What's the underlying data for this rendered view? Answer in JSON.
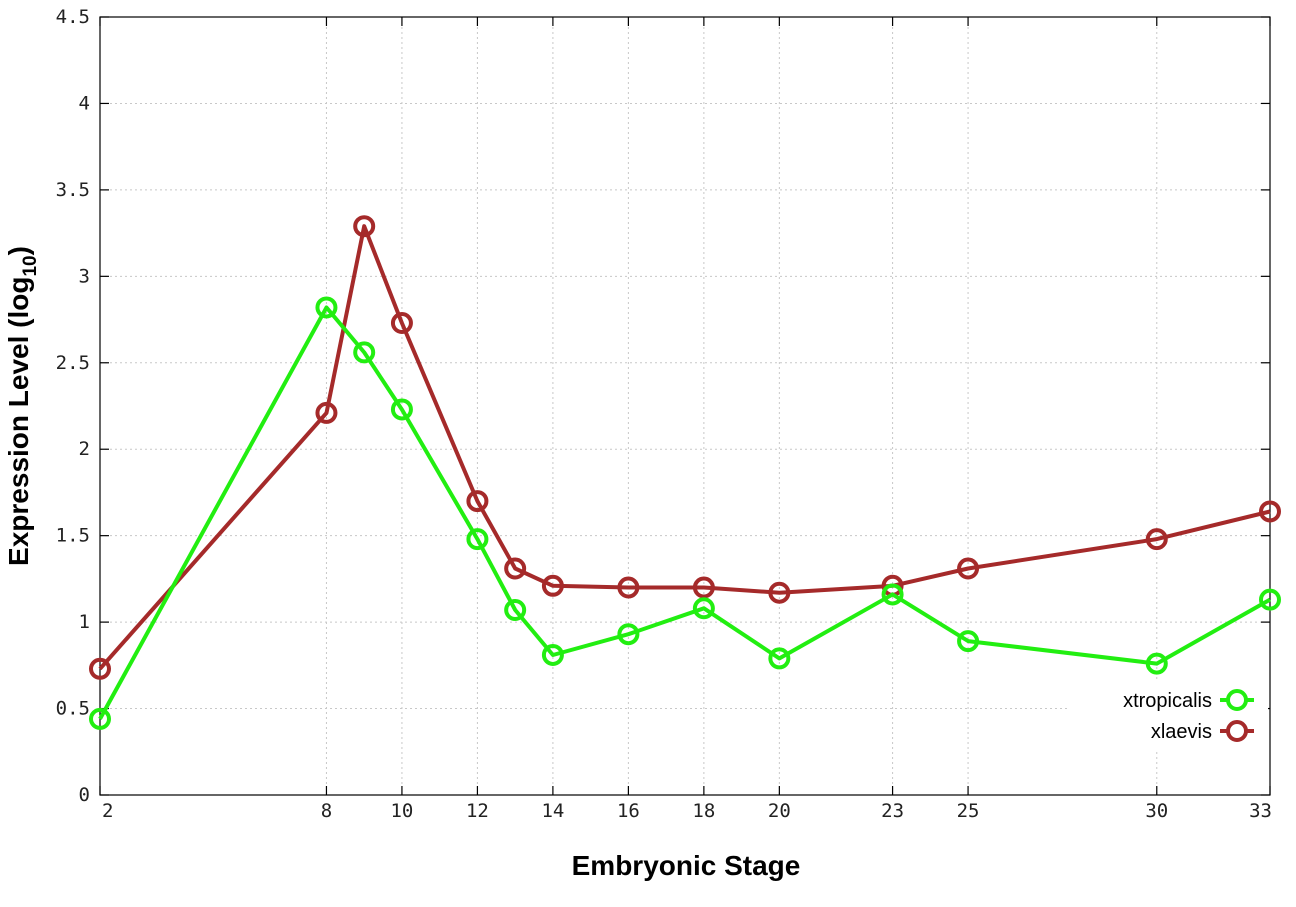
{
  "chart_data": {
    "type": "line",
    "xlabel": "Embryonic Stage",
    "ylabel": "Expression Level (log",
    "ylabel_subscript": "10",
    "ylabel_close": ")",
    "xlim": [
      2,
      33
    ],
    "ylim": [
      0,
      4.5
    ],
    "x_ticks": [
      2,
      8,
      10,
      12,
      14,
      16,
      18,
      20,
      23,
      25,
      30,
      33
    ],
    "y_ticks": [
      0,
      0.5,
      1,
      1.5,
      2,
      2.5,
      3,
      3.5,
      4,
      4.5
    ],
    "y_tick_labels": [
      "0",
      "0.5",
      "1",
      "1.5",
      "2",
      "2.5",
      "3",
      "3.5",
      "4",
      "4.5"
    ],
    "grid": true,
    "legend_position": "bottom-right",
    "x": [
      2,
      8,
      9,
      10,
      12,
      13,
      14,
      16,
      18,
      20,
      23,
      25,
      30,
      33
    ],
    "series": [
      {
        "name": "xtropicalis",
        "color": "#22ee11",
        "values": [
          0.44,
          2.82,
          2.56,
          2.23,
          1.48,
          1.07,
          0.81,
          0.93,
          1.08,
          0.79,
          1.16,
          0.89,
          0.76,
          1.13
        ]
      },
      {
        "name": "xlaevis",
        "color": "#a52a2a",
        "values": [
          0.73,
          2.21,
          3.29,
          2.73,
          1.7,
          1.31,
          1.21,
          1.2,
          1.2,
          1.17,
          1.21,
          1.31,
          1.48,
          1.64
        ]
      }
    ]
  }
}
